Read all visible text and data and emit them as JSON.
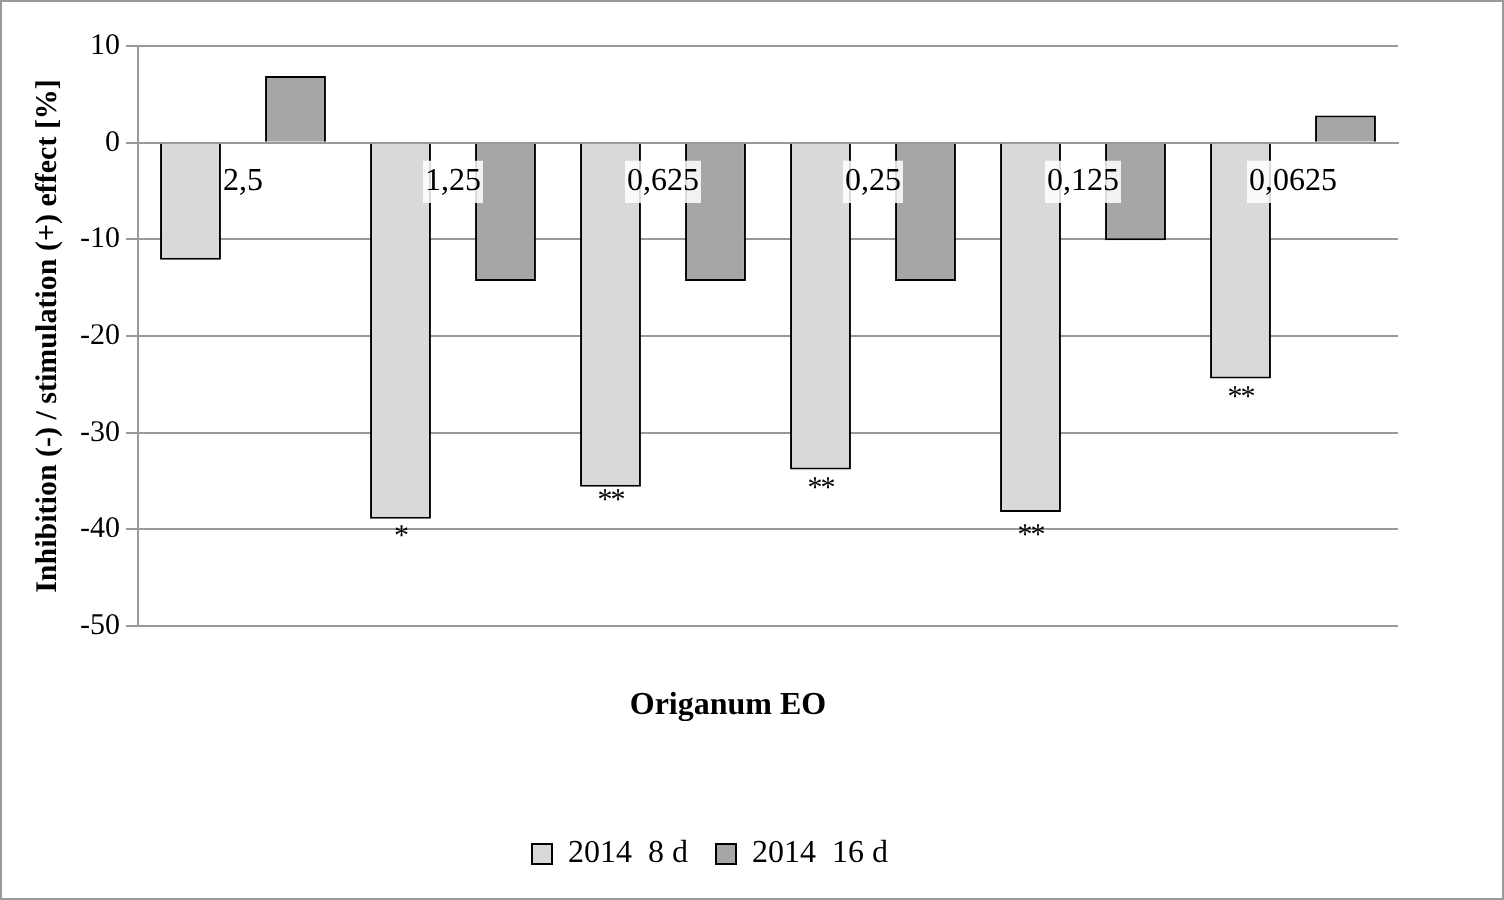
{
  "chart_data": {
    "type": "bar",
    "xlabel": "Origanum EO",
    "ylabel": "Inhibition (-) / stimulation (+) effect [%]",
    "categories": [
      "2,5",
      "1,25",
      "0,625",
      "0,25",
      "0,125",
      "0,0625"
    ],
    "series": [
      {
        "name": "2014  8 d",
        "color": "#d9d9d9",
        "values": [
          -12.1,
          -38.9,
          -35.6,
          -33.8,
          -38.2,
          -24.4
        ]
      },
      {
        "name": "2014  16 d",
        "color": "#a6a6a6",
        "values": [
          6.9,
          -14.3,
          -14.3,
          -14.3,
          -10.1,
          2.8
        ]
      }
    ],
    "ylim": [
      -50,
      10
    ],
    "yticks": [
      -50,
      -40,
      -30,
      -20,
      -10,
      0,
      10
    ],
    "grid": "y",
    "legend": "bottom",
    "annotations": [
      "*",
      "**",
      "**",
      "**",
      "**"
    ]
  }
}
